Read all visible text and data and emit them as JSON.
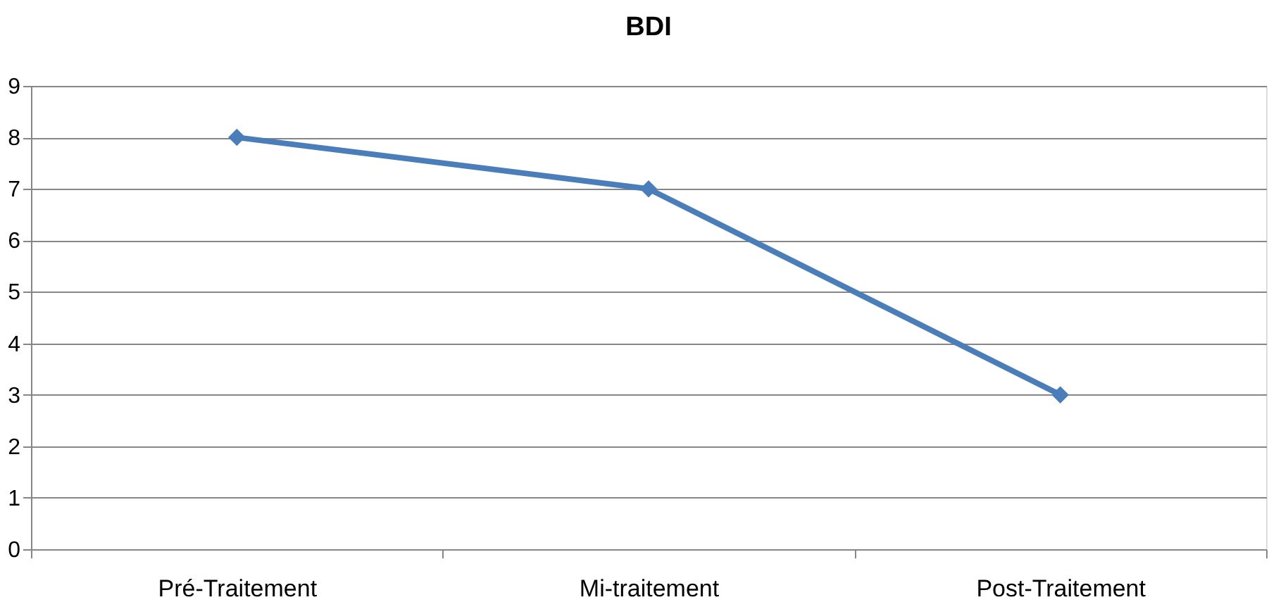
{
  "chart_data": {
    "type": "line",
    "title": "BDI",
    "categories": [
      "Pré-Traitement",
      "Mi-traitement",
      "Post-Traitement"
    ],
    "series": [
      {
        "color": "#4a7ebb",
        "values": [
          8,
          7,
          3
        ]
      }
    ],
    "ylim": [
      0,
      9
    ],
    "yticks": [
      0,
      1,
      2,
      3,
      4,
      5,
      6,
      7,
      8,
      9
    ],
    "grid": "y",
    "marker": "diamond",
    "line_style": "solid"
  }
}
